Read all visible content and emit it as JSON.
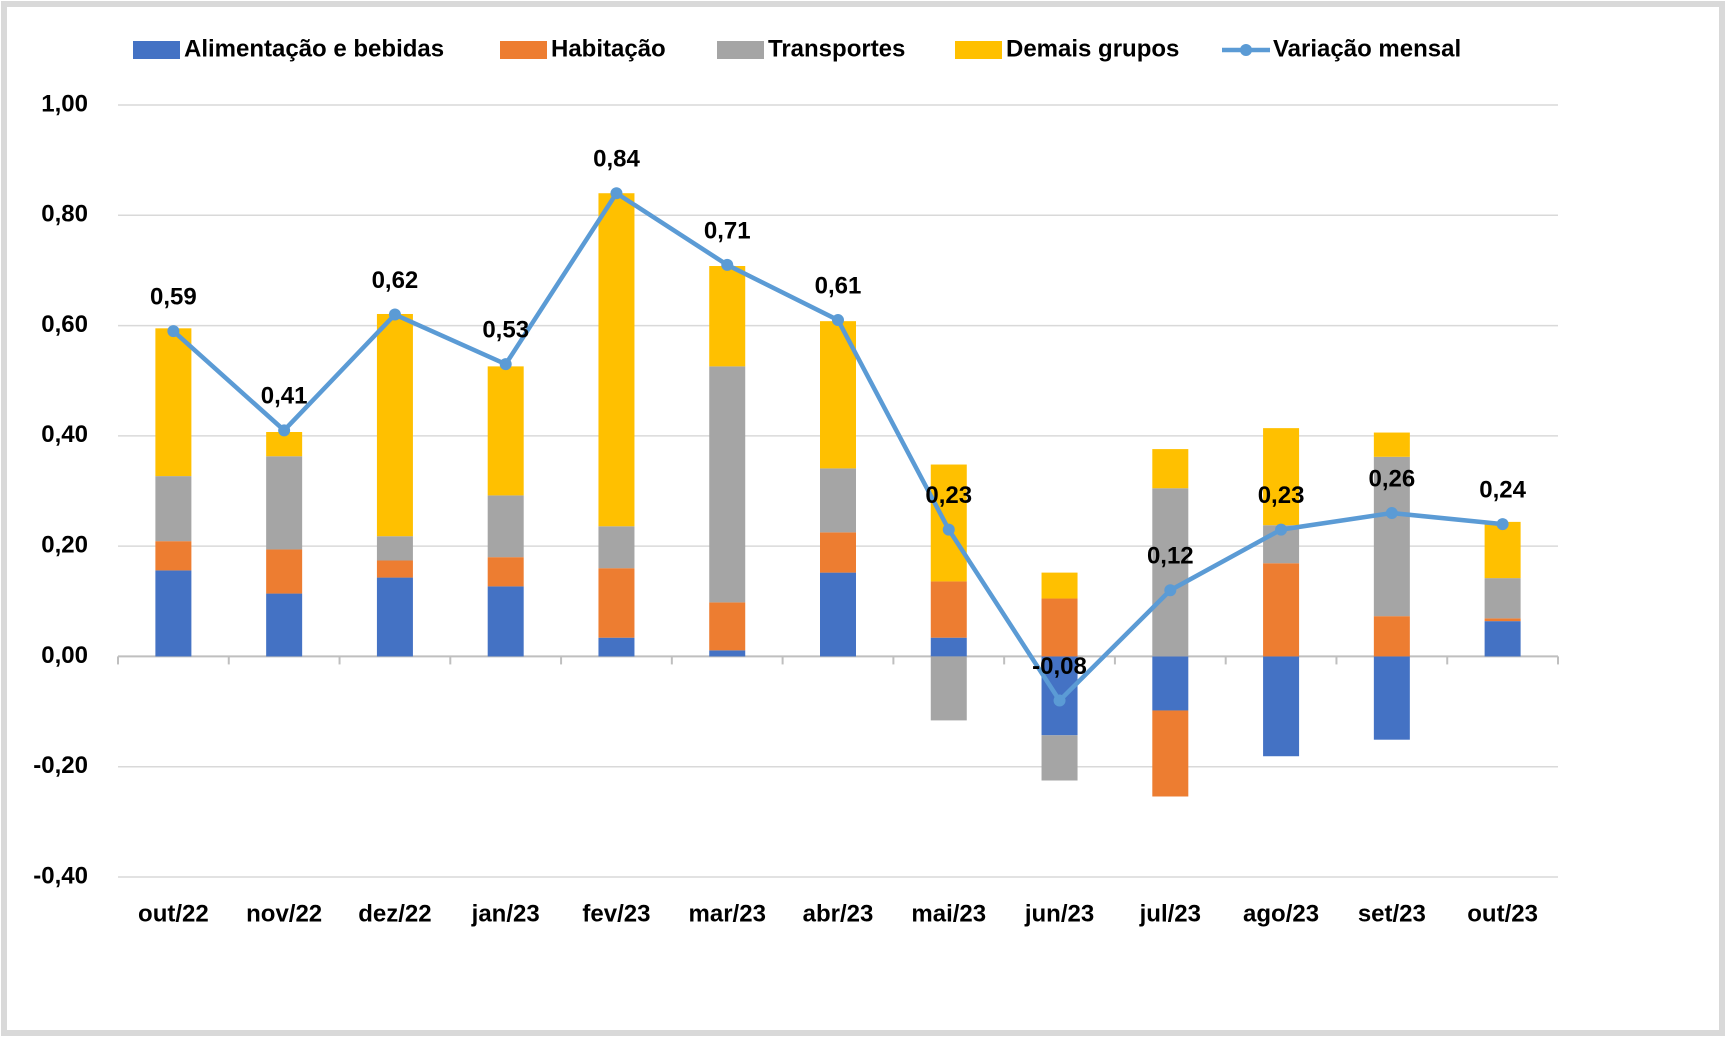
{
  "chart_data": {
    "type": "bar-line",
    "categories": [
      "out/22",
      "nov/22",
      "dez/22",
      "jan/23",
      "fev/23",
      "mar/23",
      "abr/23",
      "mai/23",
      "jun/23",
      "jul/23",
      "ago/23",
      "set/23",
      "out/23"
    ],
    "series": [
      {
        "name": "Alimentação e bebidas",
        "type": "bar",
        "color": "#4472c4",
        "values": [
          0.156,
          0.114,
          0.143,
          0.127,
          0.034,
          0.011,
          0.152,
          0.034,
          -0.143,
          -0.098,
          -0.181,
          -0.151,
          0.064
        ]
      },
      {
        "name": "Habitação",
        "type": "bar",
        "color": "#ed7d31",
        "values": [
          0.053,
          0.08,
          0.031,
          0.053,
          0.126,
          0.087,
          0.073,
          0.102,
          0.105,
          -0.156,
          0.169,
          0.073,
          0.005
        ]
      },
      {
        "name": "Transportes",
        "type": "bar",
        "color": "#a5a5a5",
        "values": [
          0.118,
          0.169,
          0.044,
          0.112,
          0.076,
          0.428,
          0.116,
          -0.116,
          -0.082,
          0.305,
          0.069,
          0.289,
          0.073
        ]
      },
      {
        "name": "Demais grupos",
        "type": "bar",
        "color": "#ffc000",
        "values": [
          0.268,
          0.044,
          0.403,
          0.234,
          0.604,
          0.182,
          0.267,
          0.212,
          0.047,
          0.071,
          0.176,
          0.044,
          0.102
        ]
      },
      {
        "name": "Variação mensal",
        "type": "line",
        "color": "#5b9bd5",
        "values": [
          0.59,
          0.41,
          0.62,
          0.53,
          0.84,
          0.71,
          0.61,
          0.23,
          -0.08,
          0.12,
          0.23,
          0.26,
          0.24
        ],
        "value_labels": [
          "0,59",
          "0,41",
          "0,62",
          "0,53",
          "0,84",
          "0,71",
          "0,61",
          "0,23",
          "-0,08",
          "0,12",
          "0,23",
          "0,26",
          "0,24"
        ]
      }
    ],
    "ylim": [
      -0.4,
      1.0
    ],
    "yticks": [
      {
        "value": -0.4,
        "label": "-0,40"
      },
      {
        "value": -0.2,
        "label": "-0,20"
      },
      {
        "value": 0,
        "label": "0,00"
      },
      {
        "value": 0.2,
        "label": "0,20"
      },
      {
        "value": 0.4,
        "label": "0,40"
      },
      {
        "value": 0.6,
        "label": "0,60"
      },
      {
        "value": 0.8,
        "label": "0,80"
      },
      {
        "value": 1.0,
        "label": "1,00"
      }
    ],
    "grid": true,
    "legend": "top"
  }
}
